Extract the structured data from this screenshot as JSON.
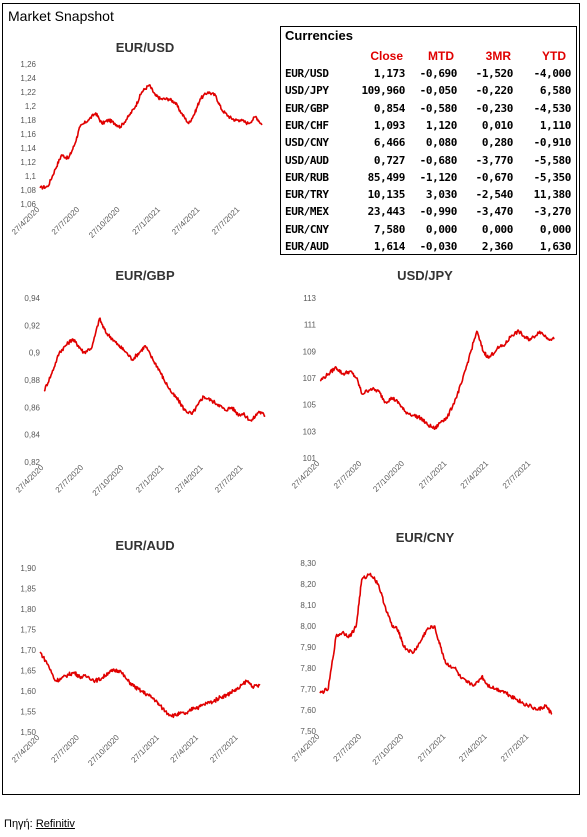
{
  "page_title": "Market Snapshot",
  "source_label": "Πηγή:",
  "source_name": "Refinitiv",
  "currencies_table": {
    "title": "Currencies",
    "headers": [
      "Close",
      "MTD",
      "3MR",
      "YTD"
    ],
    "rows": [
      {
        "pair": "EUR/USD",
        "close": "1,173",
        "mtd": "-0,690",
        "m3r": "-1,520",
        "ytd": "-4,000"
      },
      {
        "pair": "USD/JPY",
        "close": "109,960",
        "mtd": "-0,050",
        "m3r": "-0,220",
        "ytd": "6,580"
      },
      {
        "pair": "EUR/GBP",
        "close": "0,854",
        "mtd": "-0,580",
        "m3r": "-0,230",
        "ytd": "-4,530"
      },
      {
        "pair": "EUR/CHF",
        "close": "1,093",
        "mtd": "1,120",
        "m3r": "0,010",
        "ytd": "1,110"
      },
      {
        "pair": "USD/CNY",
        "close": "6,466",
        "mtd": "0,080",
        "m3r": "0,280",
        "ytd": "-0,910"
      },
      {
        "pair": "USD/AUD",
        "close": "0,727",
        "mtd": "-0,680",
        "m3r": "-3,770",
        "ytd": "-5,580"
      },
      {
        "pair": "EUR/RUB",
        "close": "85,499",
        "mtd": "-1,120",
        "m3r": "-0,670",
        "ytd": "-5,350"
      },
      {
        "pair": "EUR/TRY",
        "close": "10,135",
        "mtd": "3,030",
        "m3r": "-2,540",
        "ytd": "11,380"
      },
      {
        "pair": "EUR/MEX",
        "close": "23,443",
        "mtd": "-0,990",
        "m3r": "-3,470",
        "ytd": "-3,270"
      },
      {
        "pair": "EUR/CNY",
        "close": "7,580",
        "mtd": "0,000",
        "m3r": "0,000",
        "ytd": "0,000"
      },
      {
        "pair": "EUR/AUD",
        "close": "1,614",
        "mtd": "-0,030",
        "m3r": "2,360",
        "ytd": "1,630"
      }
    ]
  },
  "colors": {
    "series": "#e00000",
    "tick_text": "#595959"
  },
  "chart_data": [
    {
      "type": "line",
      "title": "EUR/USD",
      "x_ticks": [
        "27/4/2020",
        "27/7/2020",
        "27/10/2020",
        "27/1/2021",
        "27/4/2021",
        "27/7/2021"
      ],
      "y_ticks": [
        "1,06",
        "1,08",
        "1,1",
        "1,12",
        "1,14",
        "1,16",
        "1,18",
        "1,2",
        "1,22",
        "1,24",
        "1,26"
      ],
      "ylim": [
        1.06,
        1.26
      ],
      "x": [
        "27/4/2020",
        "15/5/2020",
        "1/6/2020",
        "15/6/2020",
        "1/7/2020",
        "15/7/2020",
        "27/7/2020",
        "15/8/2020",
        "1/9/2020",
        "15/9/2020",
        "1/10/2020",
        "15/10/2020",
        "27/10/2020",
        "15/11/2020",
        "1/12/2020",
        "15/12/2020",
        "1/1/2021",
        "15/1/2021",
        "27/1/2021",
        "15/2/2021",
        "1/3/2021",
        "15/3/2021",
        "1/4/2021",
        "15/4/2021",
        "27/4/2021",
        "15/5/2021",
        "1/6/2021",
        "15/6/2021",
        "1/7/2021",
        "15/7/2021",
        "27/7/2021",
        "15/8/2021",
        "1/9/2021",
        "15/9/2021"
      ],
      "values": [
        1.083,
        1.085,
        1.11,
        1.13,
        1.125,
        1.145,
        1.17,
        1.18,
        1.19,
        1.175,
        1.18,
        1.175,
        1.17,
        1.185,
        1.2,
        1.22,
        1.23,
        1.215,
        1.21,
        1.21,
        1.205,
        1.19,
        1.175,
        1.19,
        1.21,
        1.22,
        1.215,
        1.195,
        1.185,
        1.18,
        1.18,
        1.175,
        1.185,
        1.173
      ]
    },
    {
      "type": "line",
      "title": "EUR/GBP",
      "x_ticks": [
        "27/4/2020",
        "27/7/2020",
        "27/10/2020",
        "27/1/2021",
        "27/4/2021",
        "27/7/2021"
      ],
      "y_ticks": [
        "0,82",
        "0,84",
        "0,86",
        "0,88",
        "0,9",
        "0,92",
        "0,94"
      ],
      "ylim": [
        0.82,
        0.94
      ],
      "x": [
        "27/4/2020",
        "15/5/2020",
        "1/6/2020",
        "15/6/2020",
        "1/7/2020",
        "15/7/2020",
        "27/7/2020",
        "15/8/2020",
        "1/9/2020",
        "15/9/2020",
        "1/10/2020",
        "15/10/2020",
        "27/10/2020",
        "15/11/2020",
        "1/12/2020",
        "15/12/2020",
        "1/1/2021",
        "15/1/2021",
        "27/1/2021",
        "15/2/2021",
        "1/3/2021",
        "15/3/2021",
        "1/4/2021",
        "15/4/2021",
        "27/4/2021",
        "15/5/2021",
        "1/6/2021",
        "15/6/2021",
        "1/7/2021",
        "15/7/2021",
        "27/7/2021",
        "15/8/2021",
        "1/9/2021",
        "15/9/2021"
      ],
      "values": [
        0.872,
        0.885,
        0.9,
        0.905,
        0.91,
        0.905,
        0.9,
        0.904,
        0.925,
        0.915,
        0.91,
        0.905,
        0.902,
        0.895,
        0.9,
        0.905,
        0.895,
        0.888,
        0.88,
        0.87,
        0.865,
        0.858,
        0.855,
        0.862,
        0.868,
        0.865,
        0.862,
        0.858,
        0.86,
        0.855,
        0.855,
        0.85,
        0.857,
        0.854
      ]
    },
    {
      "type": "line",
      "title": "USD/JPY",
      "x_ticks": [
        "27/4/2020",
        "27/7/2020",
        "27/10/2020",
        "27/1/2021",
        "27/4/2021",
        "27/7/2021"
      ],
      "y_ticks": [
        "101",
        "103",
        "105",
        "107",
        "109",
        "111",
        "113"
      ],
      "ylim": [
        101,
        113
      ],
      "x": [
        "27/4/2020",
        "15/5/2020",
        "1/6/2020",
        "15/6/2020",
        "1/7/2020",
        "15/7/2020",
        "27/7/2020",
        "15/8/2020",
        "1/9/2020",
        "15/9/2020",
        "1/10/2020",
        "15/10/2020",
        "27/10/2020",
        "15/11/2020",
        "1/12/2020",
        "15/12/2020",
        "1/1/2021",
        "15/1/2021",
        "27/1/2021",
        "15/2/2021",
        "1/3/2021",
        "15/3/2021",
        "1/4/2021",
        "15/4/2021",
        "27/4/2021",
        "15/5/2021",
        "1/6/2021",
        "15/6/2021",
        "1/7/2021",
        "15/7/2021",
        "27/7/2021",
        "15/8/2021",
        "1/9/2021",
        "15/9/2021"
      ],
      "values": [
        106.8,
        107.3,
        107.8,
        107.3,
        107.5,
        107.0,
        105.8,
        106.2,
        106.0,
        105.2,
        105.5,
        105.1,
        104.5,
        104.2,
        104.0,
        103.5,
        103.2,
        103.8,
        104.0,
        105.5,
        106.8,
        108.5,
        110.5,
        109.0,
        108.5,
        109.2,
        109.5,
        110.2,
        110.5,
        110.0,
        109.9,
        110.5,
        110.0,
        109.9
      ]
    },
    {
      "type": "line",
      "title": "EUR/AUD",
      "x_ticks": [
        "27/4/2020",
        "27/7/2020",
        "27/10/2020",
        "27/1/2021",
        "27/4/2021",
        "27/7/2021"
      ],
      "y_ticks": [
        "1,50",
        "1,55",
        "1,60",
        "1,65",
        "1,70",
        "1,75",
        "1,80",
        "1,85",
        "1,90"
      ],
      "ylim": [
        1.5,
        1.9
      ],
      "x": [
        "27/4/2020",
        "15/5/2020",
        "1/6/2020",
        "15/6/2020",
        "1/7/2020",
        "15/7/2020",
        "27/7/2020",
        "15/8/2020",
        "1/9/2020",
        "15/9/2020",
        "1/10/2020",
        "15/10/2020",
        "27/10/2020",
        "15/11/2020",
        "1/12/2020",
        "15/12/2020",
        "1/1/2021",
        "15/1/2021",
        "27/1/2021",
        "15/2/2021",
        "1/3/2021",
        "15/3/2021",
        "1/4/2021",
        "15/4/2021",
        "27/4/2021",
        "15/5/2021",
        "1/6/2021",
        "15/6/2021",
        "1/7/2021",
        "15/7/2021",
        "27/7/2021",
        "15/8/2021",
        "1/9/2021",
        "15/9/2021"
      ],
      "values": [
        1.695,
        1.665,
        1.625,
        1.63,
        1.64,
        1.645,
        1.635,
        1.635,
        1.625,
        1.63,
        1.645,
        1.65,
        1.65,
        1.625,
        1.61,
        1.6,
        1.59,
        1.58,
        1.565,
        1.545,
        1.54,
        1.545,
        1.545,
        1.56,
        1.56,
        1.57,
        1.575,
        1.585,
        1.59,
        1.6,
        1.605,
        1.625,
        1.61,
        1.614
      ]
    },
    {
      "type": "line",
      "title": "EUR/CNY",
      "x_ticks": [
        "27/4/2020",
        "27/7/2020",
        "27/10/2020",
        "27/1/2021",
        "27/4/2021",
        "27/7/2021"
      ],
      "y_ticks": [
        "7,50",
        "7,60",
        "7,70",
        "7,80",
        "7,90",
        "8,00",
        "8,10",
        "8,20",
        "8,30"
      ],
      "ylim": [
        7.5,
        8.3
      ],
      "x": [
        "27/4/2020",
        "15/5/2020",
        "1/6/2020",
        "15/6/2020",
        "1/7/2020",
        "15/7/2020",
        "27/7/2020",
        "15/8/2020",
        "1/9/2020",
        "15/9/2020",
        "1/10/2020",
        "15/10/2020",
        "27/10/2020",
        "15/11/2020",
        "1/12/2020",
        "15/12/2020",
        "1/1/2021",
        "15/1/2021",
        "27/1/2021",
        "15/2/2021",
        "1/3/2021",
        "15/3/2021",
        "1/4/2021",
        "15/4/2021",
        "27/4/2021",
        "15/5/2021",
        "1/6/2021",
        "15/6/2021",
        "1/7/2021",
        "15/7/2021",
        "27/7/2021",
        "15/8/2021",
        "1/9/2021",
        "15/9/2021"
      ],
      "values": [
        7.68,
        7.7,
        7.95,
        7.97,
        7.95,
        8.0,
        8.22,
        8.25,
        8.2,
        8.1,
        8.0,
        7.98,
        7.9,
        7.87,
        7.92,
        7.98,
        8.0,
        7.9,
        7.82,
        7.8,
        7.75,
        7.73,
        7.72,
        7.76,
        7.72,
        7.7,
        7.69,
        7.67,
        7.65,
        7.63,
        7.62,
        7.6,
        7.62,
        7.58
      ]
    }
  ]
}
